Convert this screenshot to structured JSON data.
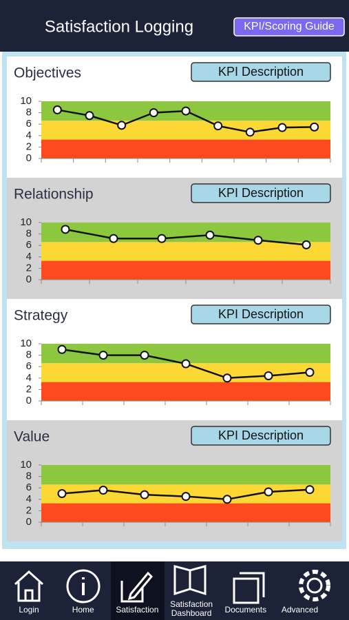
{
  "header": {
    "title": "Satisfaction Logging",
    "button": "KPI/Scoring Guide"
  },
  "panels": [
    {
      "title": "Objectives",
      "button": "KPI Description",
      "chart": {
        "type": "line",
        "values": [
          8.5,
          7.5,
          5.8,
          8.0,
          8.3,
          5.7,
          4.6,
          5.4,
          5.5
        ],
        "ylim": [
          0,
          10
        ],
        "yticks": [
          0,
          2,
          4,
          6,
          8,
          10
        ],
        "bands": [
          {
            "from": 0,
            "to": 3.3,
            "color": "#fe4a1e"
          },
          {
            "from": 3.3,
            "to": 6.6,
            "color": "#fdd835"
          },
          {
            "from": 6.6,
            "to": 10,
            "color": "#8dc63f"
          }
        ]
      }
    },
    {
      "title": "Relationship",
      "button": "KPI Description",
      "chart": {
        "type": "line",
        "values": [
          8.8,
          7.2,
          7.2,
          7.8,
          6.9,
          6.1
        ],
        "ylim": [
          0,
          10
        ],
        "yticks": [
          0,
          2,
          4,
          6,
          8,
          10
        ],
        "bands": [
          {
            "from": 0,
            "to": 3.3,
            "color": "#fe4a1e"
          },
          {
            "from": 3.3,
            "to": 6.6,
            "color": "#fdd835"
          },
          {
            "from": 6.6,
            "to": 10,
            "color": "#8dc63f"
          }
        ]
      }
    },
    {
      "title": "Strategy",
      "button": "KPI Description",
      "chart": {
        "type": "line",
        "values": [
          9.0,
          8.0,
          8.0,
          6.5,
          4.0,
          4.4,
          5.0
        ],
        "ylim": [
          0,
          10
        ],
        "yticks": [
          0,
          2,
          4,
          6,
          8,
          10
        ],
        "bands": [
          {
            "from": 0,
            "to": 3.3,
            "color": "#fe4a1e"
          },
          {
            "from": 3.3,
            "to": 6.6,
            "color": "#fdd835"
          },
          {
            "from": 6.6,
            "to": 10,
            "color": "#8dc63f"
          }
        ]
      }
    },
    {
      "title": "Value",
      "button": "KPI Description",
      "chart": {
        "type": "line",
        "values": [
          5.0,
          5.6,
          4.8,
          4.5,
          4.0,
          5.3,
          5.7
        ],
        "ylim": [
          0,
          10
        ],
        "yticks": [
          0,
          2,
          4,
          6,
          8,
          10
        ],
        "bands": [
          {
            "from": 0,
            "to": 3.3,
            "color": "#fe4a1e"
          },
          {
            "from": 3.3,
            "to": 6.6,
            "color": "#fdd835"
          },
          {
            "from": 6.6,
            "to": 10,
            "color": "#8dc63f"
          }
        ]
      }
    }
  ],
  "nav": [
    "Login",
    "Home",
    "Satisfaction",
    "Satisfaction Dashboard",
    "Documents",
    "Advanced"
  ]
}
